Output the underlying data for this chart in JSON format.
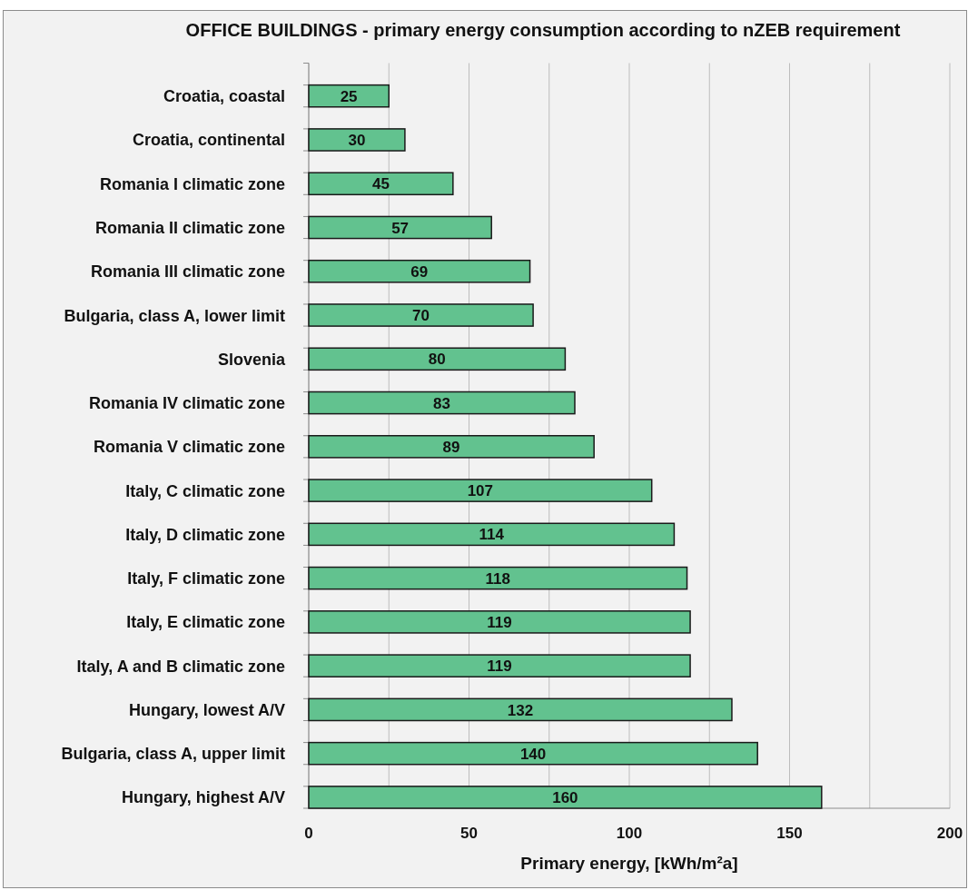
{
  "chart_data": {
    "type": "bar",
    "orientation": "horizontal",
    "title": "OFFICE BUILDINGS - primary energy consumption according to nZEB requirement",
    "xlabel": "Primary energy, [kWh/m²a]",
    "categories": [
      "Croatia, coastal",
      "Croatia, continental",
      "Romania I climatic zone",
      "Romania II climatic zone",
      "Romania III climatic zone",
      "Bulgaria, class A, lower limit",
      "Slovenia",
      "Romania IV climatic zone",
      "Romania V climatic zone",
      "Italy, C climatic zone",
      "Italy, D climatic zone",
      "Italy, F climatic zone",
      "Italy, E climatic zone",
      "Italy, A and B climatic zone",
      "Hungary, lowest A/V",
      "Bulgaria, class A, upper limit",
      "Hungary, highest A/V"
    ],
    "values": [
      25,
      30,
      45,
      57,
      69,
      70,
      80,
      83,
      89,
      107,
      114,
      118,
      119,
      119,
      132,
      140,
      160
    ],
    "color": "#62c28f",
    "xlim": [
      0,
      200
    ],
    "xticks": [
      0,
      {
        "value": 25,
        "label": null
      },
      50,
      {
        "value": 75,
        "label": null
      },
      100,
      {
        "value": 125,
        "label": null
      },
      150,
      {
        "value": 175,
        "label": null
      },
      200
    ],
    "grid": "x",
    "data_labels": true
  }
}
